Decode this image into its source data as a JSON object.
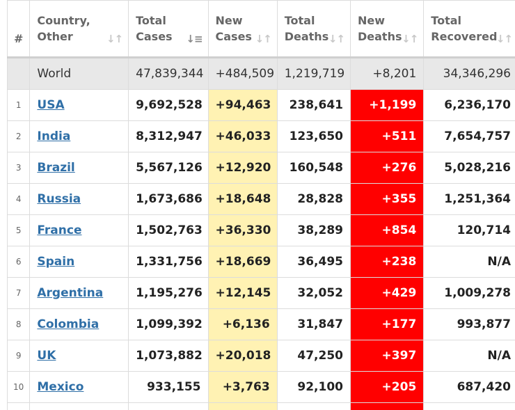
{
  "headers": {
    "idx": "#",
    "country": [
      "Country,",
      "Other"
    ],
    "total_cases": [
      "Total",
      "Cases"
    ],
    "new_cases": [
      "New",
      "Cases"
    ],
    "total_deaths": [
      "Total",
      "Deaths"
    ],
    "new_deaths": [
      "New",
      "Deaths"
    ],
    "total_recovered": [
      "Total",
      "Recovered"
    ],
    "sort_icon": "sort-arrows-icon",
    "active_sort_icon": "sort-descending-icon"
  },
  "world": {
    "country": "World",
    "total_cases": "47,839,344",
    "new_cases": "+484,509",
    "total_deaths": "1,219,719",
    "new_deaths": "+8,201",
    "total_recovered": "34,346,296"
  },
  "rows": [
    {
      "idx": "1",
      "country": "USA",
      "total_cases": "9,692,528",
      "new_cases": "+94,463",
      "total_deaths": "238,641",
      "new_deaths": "+1,199",
      "total_recovered": "6,236,170"
    },
    {
      "idx": "2",
      "country": "India",
      "total_cases": "8,312,947",
      "new_cases": "+46,033",
      "total_deaths": "123,650",
      "new_deaths": "+511",
      "total_recovered": "7,654,757"
    },
    {
      "idx": "3",
      "country": "Brazil",
      "total_cases": "5,567,126",
      "new_cases": "+12,920",
      "total_deaths": "160,548",
      "new_deaths": "+276",
      "total_recovered": "5,028,216"
    },
    {
      "idx": "4",
      "country": "Russia",
      "total_cases": "1,673,686",
      "new_cases": "+18,648",
      "total_deaths": "28,828",
      "new_deaths": "+355",
      "total_recovered": "1,251,364"
    },
    {
      "idx": "5",
      "country": "France",
      "total_cases": "1,502,763",
      "new_cases": "+36,330",
      "total_deaths": "38,289",
      "new_deaths": "+854",
      "total_recovered": "120,714"
    },
    {
      "idx": "6",
      "country": "Spain",
      "total_cases": "1,331,756",
      "new_cases": "+18,669",
      "total_deaths": "36,495",
      "new_deaths": "+238",
      "total_recovered": "N/A"
    },
    {
      "idx": "7",
      "country": "Argentina",
      "total_cases": "1,195,276",
      "new_cases": "+12,145",
      "total_deaths": "32,052",
      "new_deaths": "+429",
      "total_recovered": "1,009,278"
    },
    {
      "idx": "8",
      "country": "Colombia",
      "total_cases": "1,099,392",
      "new_cases": "+6,136",
      "total_deaths": "31,847",
      "new_deaths": "+177",
      "total_recovered": "993,877"
    },
    {
      "idx": "9",
      "country": "UK",
      "total_cases": "1,073,882",
      "new_cases": "+20,018",
      "total_deaths": "47,250",
      "new_deaths": "+397",
      "total_recovered": "N/A"
    },
    {
      "idx": "10",
      "country": "Mexico",
      "total_cases": "933,155",
      "new_cases": "+3,763",
      "total_deaths": "92,100",
      "new_deaths": "+205",
      "total_recovered": "687,420"
    }
  ],
  "colors": {
    "new_cases_bg": "#fff2b3",
    "new_deaths_bg": "#ff0000",
    "world_row_bg": "#e8e8e8",
    "link": "#2f6fa7"
  }
}
